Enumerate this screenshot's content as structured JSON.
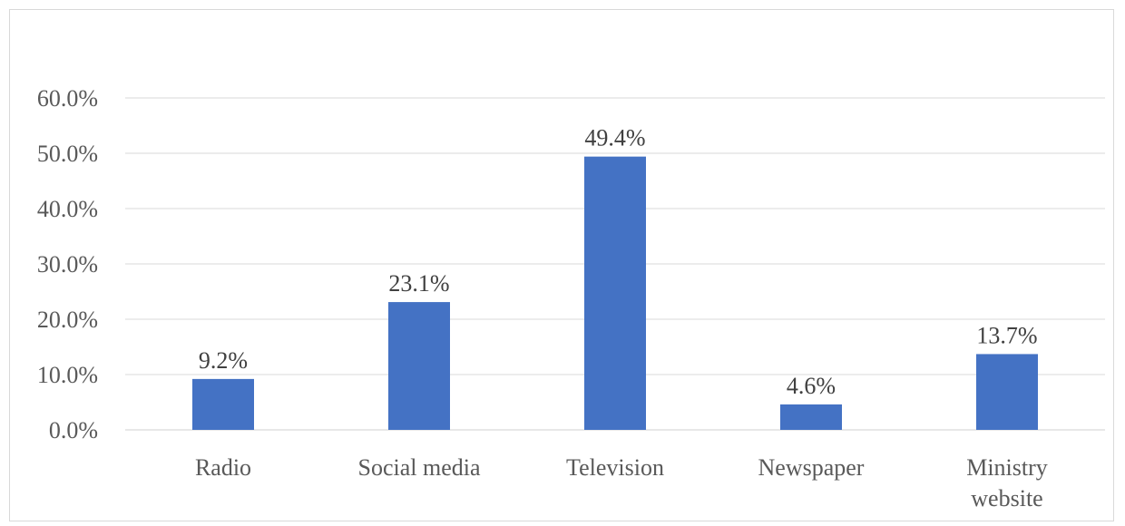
{
  "chart_data": {
    "type": "bar",
    "categories": [
      "Radio",
      "Social media",
      "Television",
      "Newspaper",
      "Ministry website"
    ],
    "category_lines": [
      [
        "Radio"
      ],
      [
        "Social media"
      ],
      [
        "Television"
      ],
      [
        "Newspaper"
      ],
      [
        "Ministry",
        "website"
      ]
    ],
    "values": [
      9.2,
      23.1,
      49.4,
      4.6,
      13.7
    ],
    "data_labels": [
      "9.2%",
      "23.1%",
      "49.4%",
      "4.6%",
      "13.7%"
    ],
    "y_ticks": [
      0,
      10,
      20,
      30,
      40,
      50,
      60
    ],
    "y_tick_labels": [
      "0.0%",
      "10.0%",
      "20.0%",
      "30.0%",
      "40.0%",
      "50.0%",
      "60.0%"
    ],
    "ylim": [
      0,
      60
    ],
    "title": "",
    "xlabel": "",
    "ylabel": "",
    "grid": true,
    "legend": "none",
    "bar_color": "#4472C4"
  }
}
